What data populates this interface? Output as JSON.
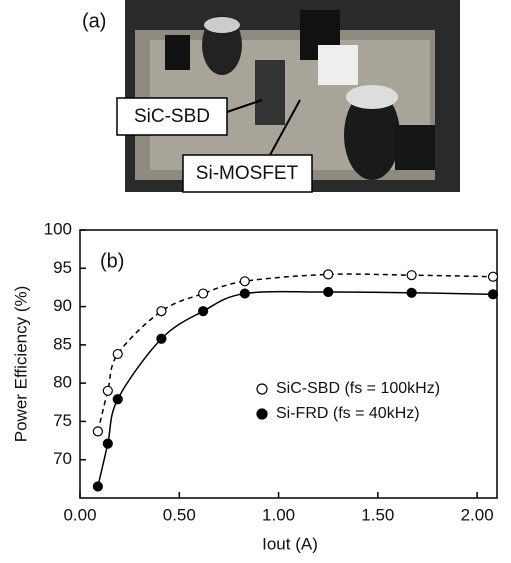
{
  "photo": {
    "label": "(a)",
    "callouts": [
      "SiC-SBD",
      "Si-MOSFET"
    ]
  },
  "chart_data": {
    "type": "line",
    "annotation": "(b)",
    "x_label": "Iout (A)",
    "y_label": "Power Efficiency (%)",
    "xlim": [
      0,
      2.1
    ],
    "ylim": [
      65,
      100
    ],
    "xticks": [
      {
        "value": 0,
        "label": "0.00"
      },
      {
        "value": 0.5,
        "label": "0.50"
      },
      {
        "value": 1,
        "label": "1.00"
      },
      {
        "value": 1.5,
        "label": "1.50"
      },
      {
        "value": 2,
        "label": "2.00"
      }
    ],
    "yticks": [
      70,
      75,
      80,
      85,
      90,
      95,
      100
    ],
    "legend": "lower-right",
    "series": [
      {
        "name": "SiC-SBD (fs = 100kHz)",
        "color": "#000000",
        "marker": "open",
        "line_style": "dashed",
        "x": [
          0.09,
          0.14,
          0.19,
          0.41,
          0.62,
          0.83,
          1.25,
          1.67,
          2.08
        ],
        "values": [
          73.7,
          79.0,
          83.8,
          89.4,
          91.7,
          93.3,
          94.2,
          94.1,
          93.9
        ]
      },
      {
        "name": "Si-FRD (fs = 40kHz)",
        "color": "#000000",
        "marker": "filled",
        "line_style": "solid",
        "x": [
          0.09,
          0.14,
          0.19,
          0.41,
          0.62,
          0.83,
          1.25,
          1.67,
          2.08
        ],
        "values": [
          66.5,
          72.1,
          77.9,
          85.8,
          89.4,
          91.7,
          91.9,
          91.8,
          91.6
        ]
      }
    ]
  }
}
